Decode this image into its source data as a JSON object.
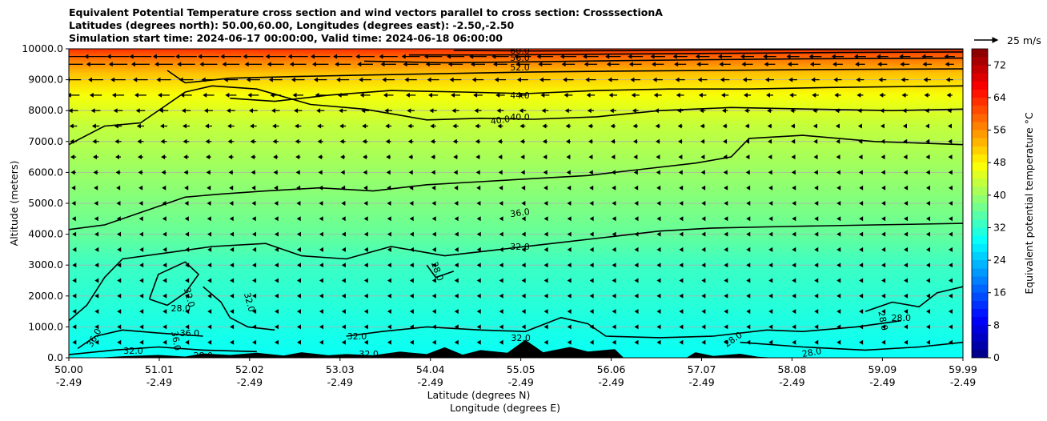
{
  "chart_data": {
    "type": "cross-section",
    "title_lines": [
      "Equivalent Potential Temperature cross section and wind vectors parallel to cross section: CrosssectionA",
      "Latitudes (degrees north): 50.00,60.00, Longitudes (degrees east): -2.50,-2.50",
      "Simulation start time: 2024-06-17 00:00:00, Valid time: 2024-06-18 06:00:00"
    ],
    "xlabel_lat": "Latitude (degrees N)",
    "xlabel_lon": "Longitude (degrees E)",
    "ylabel": "Altitude (meters)",
    "xlim": [
      50.0,
      59.99
    ],
    "ylim": [
      0,
      10000
    ],
    "x_ticks": [
      {
        "lat": "50.00",
        "lon": "-2.49",
        "v": 50.0
      },
      {
        "lat": "51.01",
        "lon": "-2.49",
        "v": 51.01
      },
      {
        "lat": "52.02",
        "lon": "-2.49",
        "v": 52.02
      },
      {
        "lat": "53.03",
        "lon": "-2.49",
        "v": 53.03
      },
      {
        "lat": "54.04",
        "lon": "-2.49",
        "v": 54.04
      },
      {
        "lat": "55.05",
        "lon": "-2.49",
        "v": 55.05
      },
      {
        "lat": "56.06",
        "lon": "-2.49",
        "v": 56.06
      },
      {
        "lat": "57.07",
        "lon": "-2.49",
        "v": 57.07
      },
      {
        "lat": "58.08",
        "lon": "-2.49",
        "v": 58.08
      },
      {
        "lat": "59.09",
        "lon": "-2.49",
        "v": 59.09
      },
      {
        "lat": "59.99",
        "lon": "-2.49",
        "v": 59.99
      }
    ],
    "y_ticks": [
      {
        "label": "0.0",
        "v": 0
      },
      {
        "label": "1000.0",
        "v": 1000
      },
      {
        "label": "2000.0",
        "v": 2000
      },
      {
        "label": "3000.0",
        "v": 3000
      },
      {
        "label": "4000.0",
        "v": 4000
      },
      {
        "label": "5000.0",
        "v": 5000
      },
      {
        "label": "6000.0",
        "v": 6000
      },
      {
        "label": "7000.0",
        "v": 7000
      },
      {
        "label": "8000.0",
        "v": 8000
      },
      {
        "label": "9000.0",
        "v": 9000
      },
      {
        "label": "10000.0",
        "v": 10000
      }
    ],
    "grid": "horizontal",
    "colorbar": {
      "label": "Equivalent potential temperature °C",
      "range": [
        0,
        76
      ],
      "ticks": [
        "0",
        "8",
        "16",
        "24",
        "32",
        "40",
        "48",
        "56",
        "64",
        "72"
      ],
      "colormap": "jet"
    },
    "wind_key": {
      "label": "25 m/s",
      "placement": "top-right"
    },
    "theta_e_profile": [
      {
        "alt": 0,
        "value": 29
      },
      {
        "alt": 1500,
        "value": 31
      },
      {
        "alt": 3000,
        "value": 33
      },
      {
        "alt": 4000,
        "value": 36
      },
      {
        "alt": 6000,
        "value": 40
      },
      {
        "alt": 7500,
        "value": 43
      },
      {
        "alt": 8500,
        "value": 47
      },
      {
        "alt": 9200,
        "value": 52
      },
      {
        "alt": 9600,
        "value": 57
      },
      {
        "alt": 10000,
        "value": 63
      }
    ],
    "contours": [
      {
        "value": 28,
        "label": "28.0",
        "points": [
          [
            54.0,
            3000
          ],
          [
            54.1,
            2600
          ],
          [
            54.3,
            2800
          ]
        ]
      },
      {
        "value": 28,
        "label": "28.0",
        "points": [
          [
            50.9,
            1900
          ],
          [
            51.0,
            2700
          ],
          [
            51.3,
            3100
          ],
          [
            51.45,
            2700
          ],
          [
            51.3,
            2100
          ],
          [
            51.1,
            1700
          ],
          [
            50.9,
            1900
          ]
        ]
      },
      {
        "value": 28,
        "label": "28.0",
        "points": [
          [
            58.9,
            1500
          ],
          [
            59.2,
            1800
          ],
          [
            59.5,
            1650
          ],
          [
            59.7,
            2100
          ],
          [
            59.99,
            2300
          ]
        ]
      },
      {
        "value": 28,
        "label": "28.0",
        "points": [
          [
            57.5,
            500
          ],
          [
            58.2,
            350
          ],
          [
            58.9,
            250
          ],
          [
            59.5,
            350
          ],
          [
            59.99,
            500
          ]
        ]
      },
      {
        "value": 32,
        "label": "32.0",
        "points": [
          [
            50.0,
            1200
          ],
          [
            50.2,
            1700
          ],
          [
            50.4,
            2600
          ],
          [
            50.6,
            3200
          ],
          [
            51.1,
            3400
          ],
          [
            51.6,
            3600
          ],
          [
            52.2,
            3700
          ],
          [
            52.6,
            3300
          ],
          [
            53.1,
            3200
          ],
          [
            53.6,
            3600
          ],
          [
            54.2,
            3300
          ],
          [
            54.8,
            3500
          ],
          [
            55.4,
            3700
          ],
          [
            56.0,
            3900
          ],
          [
            56.6,
            4100
          ],
          [
            57.2,
            4200
          ],
          [
            58.0,
            4250
          ],
          [
            59.0,
            4300
          ],
          [
            59.99,
            4350
          ]
        ]
      },
      {
        "value": 32,
        "label": "32.0",
        "points": [
          [
            51.5,
            2300
          ],
          [
            51.7,
            1800
          ],
          [
            51.8,
            1300
          ],
          [
            52.0,
            1000
          ],
          [
            52.3,
            900
          ]
        ]
      },
      {
        "value": 32,
        "label": "32.0",
        "points": [
          [
            53.1,
            700
          ],
          [
            53.5,
            850
          ],
          [
            54.0,
            1000
          ],
          [
            54.6,
            900
          ],
          [
            55.1,
            850
          ],
          [
            55.5,
            1300
          ],
          [
            55.8,
            1100
          ],
          [
            56.0,
            700
          ],
          [
            56.6,
            650
          ],
          [
            57.2,
            700
          ],
          [
            57.8,
            900
          ],
          [
            58.2,
            850
          ],
          [
            58.8,
            1000
          ],
          [
            59.3,
            1200
          ]
        ]
      },
      {
        "value": 32,
        "label": "32.0",
        "points": [
          [
            50.0,
            100
          ],
          [
            50.5,
            250
          ],
          [
            51.0,
            350
          ],
          [
            51.5,
            250
          ],
          [
            52.1,
            200
          ]
        ]
      },
      {
        "value": 36,
        "label": "36.0",
        "points": [
          [
            50.0,
            4150
          ],
          [
            50.4,
            4300
          ],
          [
            50.9,
            4800
          ],
          [
            51.3,
            5200
          ],
          [
            51.7,
            5300
          ],
          [
            52.2,
            5400
          ],
          [
            52.8,
            5500
          ],
          [
            53.4,
            5400
          ],
          [
            54.0,
            5600
          ],
          [
            54.6,
            5700
          ],
          [
            55.2,
            5800
          ],
          [
            55.8,
            5900
          ],
          [
            56.4,
            6100
          ],
          [
            57.0,
            6300
          ],
          [
            57.4,
            6500
          ],
          [
            57.6,
            7100
          ],
          [
            58.2,
            7200
          ],
          [
            59.0,
            7000
          ],
          [
            59.99,
            6900
          ]
        ]
      },
      {
        "value": 36,
        "label": "36.0",
        "points": [
          [
            50.1,
            300
          ],
          [
            50.3,
            700
          ],
          [
            50.6,
            900
          ],
          [
            51.0,
            800
          ],
          [
            51.5,
            700
          ]
        ]
      },
      {
        "value": 40,
        "label": "40.0",
        "points": [
          [
            50.0,
            6900
          ],
          [
            50.4,
            7500
          ],
          [
            50.8,
            7600
          ],
          [
            51.1,
            8200
          ],
          [
            51.3,
            8600
          ],
          [
            51.6,
            8800
          ],
          [
            52.1,
            8700
          ],
          [
            52.7,
            8200
          ],
          [
            53.3,
            8050
          ],
          [
            54.0,
            7700
          ],
          [
            54.6,
            7750
          ],
          [
            55.2,
            7720
          ],
          [
            55.9,
            7800
          ],
          [
            56.6,
            8000
          ],
          [
            57.4,
            8100
          ],
          [
            58.3,
            8050
          ],
          [
            59.2,
            8000
          ],
          [
            59.99,
            8050
          ]
        ]
      },
      {
        "value": 44,
        "label": "44.0",
        "points": [
          [
            51.8,
            8400
          ],
          [
            52.3,
            8300
          ],
          [
            52.9,
            8500
          ],
          [
            53.6,
            8650
          ],
          [
            54.4,
            8600
          ],
          [
            55.1,
            8550
          ],
          [
            55.9,
            8650
          ],
          [
            56.7,
            8700
          ],
          [
            57.6,
            8700
          ],
          [
            58.5,
            8750
          ],
          [
            59.99,
            8800
          ]
        ]
      },
      {
        "value": 48,
        "label": "48.0",
        "points": [
          [
            51.1,
            9300
          ],
          [
            51.3,
            8900
          ],
          [
            51.8,
            9050
          ],
          [
            52.5,
            9100
          ],
          [
            53.3,
            9150
          ],
          [
            54.2,
            9200
          ],
          [
            55.2,
            9250
          ],
          [
            56.2,
            9280
          ],
          [
            57.2,
            9300
          ],
          [
            58.3,
            9330
          ],
          [
            59.99,
            9350
          ]
        ]
      },
      {
        "value": 52,
        "label": "52.0",
        "points": [
          [
            53.3,
            9600
          ],
          [
            54.2,
            9550
          ],
          [
            55.2,
            9580
          ],
          [
            56.2,
            9620
          ],
          [
            57.2,
            9650
          ],
          [
            58.3,
            9680
          ],
          [
            59.99,
            9700
          ]
        ]
      },
      {
        "value": 56,
        "label": "56.0",
        "points": [
          [
            53.8,
            9800
          ],
          [
            54.7,
            9800
          ],
          [
            55.6,
            9820
          ],
          [
            56.6,
            9840
          ],
          [
            57.6,
            9860
          ],
          [
            58.6,
            9880
          ],
          [
            59.99,
            9900
          ]
        ]
      },
      {
        "value": 60,
        "label": "60.0",
        "points": [
          [
            54.3,
            9950
          ],
          [
            55.2,
            9930
          ],
          [
            56.2,
            9940
          ],
          [
            57.2,
            9960
          ],
          [
            58.3,
            9975
          ],
          [
            59.3,
            9980
          ],
          [
            59.99,
            9990
          ]
        ]
      }
    ],
    "contour_labels": [
      {
        "text": "60.0",
        "x": 55.04,
        "y": 9950,
        "rot": 0
      },
      {
        "text": "56.0",
        "x": 55.04,
        "y": 9720,
        "rot": 0
      },
      {
        "text": "52.0",
        "x": 55.04,
        "y": 9400,
        "rot": 0
      },
      {
        "text": "44.0",
        "x": 55.04,
        "y": 8500,
        "rot": 0
      },
      {
        "text": "40.0",
        "x": 54.82,
        "y": 7700,
        "rot": -8
      },
      {
        "text": "40.0",
        "x": 55.04,
        "y": 7800,
        "rot": 0
      },
      {
        "text": "36.0",
        "x": 55.04,
        "y": 4700,
        "rot": -8
      },
      {
        "text": "32.0",
        "x": 55.04,
        "y": 3600,
        "rot": 0
      },
      {
        "text": "28.0",
        "x": 54.12,
        "y": 2800,
        "rot": 70
      },
      {
        "text": "32.0",
        "x": 51.35,
        "y": 1950,
        "rot": 75
      },
      {
        "text": "28.0",
        "x": 51.25,
        "y": 1600,
        "rot": 0
      },
      {
        "text": "32.0",
        "x": 52.02,
        "y": 1800,
        "rot": 75
      },
      {
        "text": "36.0",
        "x": 51.35,
        "y": 800,
        "rot": 0
      },
      {
        "text": "36.0",
        "x": 51.2,
        "y": 550,
        "rot": 80
      },
      {
        "text": "36.0",
        "x": 50.28,
        "y": 650,
        "rot": -60
      },
      {
        "text": "32.0",
        "x": 53.22,
        "y": 700,
        "rot": 0
      },
      {
        "text": "32.0",
        "x": 55.05,
        "y": 650,
        "rot": 0
      },
      {
        "text": "32.0",
        "x": 50.72,
        "y": 230,
        "rot": 0
      },
      {
        "text": "28.0",
        "x": 59.3,
        "y": 1300,
        "rot": 0
      },
      {
        "text": "28.0",
        "x": 59.1,
        "y": 1200,
        "rot": 80
      },
      {
        "text": "28.0",
        "x": 57.42,
        "y": 600,
        "rot": -35
      },
      {
        "text": "28.0",
        "x": 58.3,
        "y": 180,
        "rot": -10
      },
      {
        "text": "32.0",
        "x": 53.35,
        "y": 130,
        "rot": 0
      },
      {
        "text": "28.0",
        "x": 51.5,
        "y": 80,
        "rot": 0
      }
    ],
    "terrain": [
      [
        50.0,
        0
      ],
      [
        50.3,
        0
      ],
      [
        50.6,
        50
      ],
      [
        51.0,
        90
      ],
      [
        51.3,
        40
      ],
      [
        51.5,
        140
      ],
      [
        51.8,
        90
      ],
      [
        52.1,
        160
      ],
      [
        52.4,
        70
      ],
      [
        52.6,
        180
      ],
      [
        52.9,
        80
      ],
      [
        53.1,
        120
      ],
      [
        53.4,
        80
      ],
      [
        53.7,
        200
      ],
      [
        54.0,
        120
      ],
      [
        54.2,
        340
      ],
      [
        54.4,
        100
      ],
      [
        54.6,
        250
      ],
      [
        54.9,
        160
      ],
      [
        55.1,
        580
      ],
      [
        55.3,
        180
      ],
      [
        55.6,
        350
      ],
      [
        55.8,
        200
      ],
      [
        56.1,
        280
      ],
      [
        56.2,
        0
      ],
      [
        56.9,
        0
      ],
      [
        57.0,
        180
      ],
      [
        57.2,
        60
      ],
      [
        57.5,
        130
      ],
      [
        57.7,
        30
      ],
      [
        57.9,
        0
      ],
      [
        59.99,
        0
      ]
    ],
    "wind_rows_alt": [
      9750,
      9500,
      9000,
      8500,
      8000,
      7500,
      7000,
      6500,
      6000,
      5500,
      5000,
      4500,
      4000,
      3500,
      3000,
      2500,
      2000,
      1500,
      1000,
      500
    ],
    "wind_cols_lat": [
      50.05,
      50.3,
      50.55,
      50.8,
      51.06,
      51.31,
      51.56,
      51.81,
      52.06,
      52.31,
      52.56,
      52.81,
      53.06,
      53.31,
      53.57,
      53.82,
      54.07,
      54.32,
      54.57,
      54.82,
      55.07,
      55.32,
      55.58,
      55.83,
      56.08,
      56.33,
      56.58,
      56.83,
      57.08,
      57.33,
      57.58,
      57.83,
      58.09,
      58.34,
      58.59,
      58.84,
      59.09,
      59.34,
      59.59,
      59.84
    ],
    "wind_speed_by_row_ms": [
      24,
      20,
      16,
      13,
      10,
      8,
      7,
      6,
      5,
      4,
      3.5,
      3,
      2.5,
      2,
      1.5,
      1.2,
      1,
      1,
      0.8,
      0.6
    ]
  }
}
